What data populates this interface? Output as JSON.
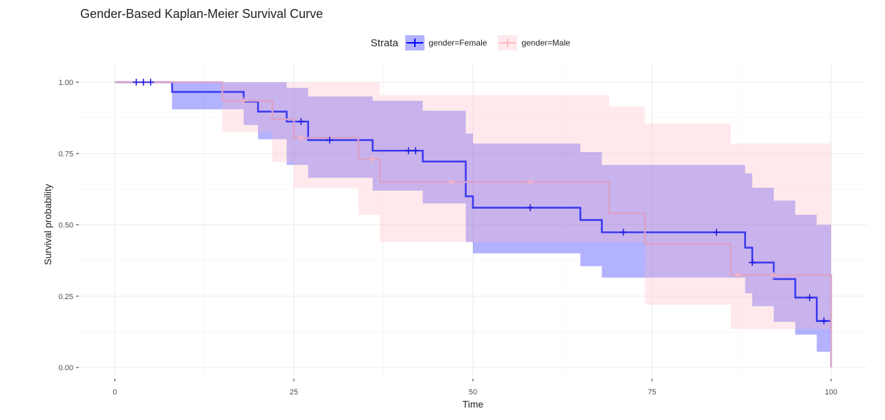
{
  "chart_data": {
    "type": "kaplan-meier",
    "title": "Gender-Based Kaplan-Meier Survival Curve",
    "xlabel": "Time",
    "ylabel": "Survival probability",
    "xlim": [
      0,
      100
    ],
    "ylim": [
      0,
      1
    ],
    "x_ticks": [
      0,
      25,
      50,
      75,
      100
    ],
    "y_ticks": [
      0,
      0.25,
      0.5,
      0.75,
      1
    ],
    "x_tick_labels": [
      "0",
      "25",
      "50",
      "75",
      "100"
    ],
    "y_tick_labels": [
      "0.00",
      "0.25",
      "0.50",
      "0.75",
      "1.00"
    ],
    "grid": true,
    "legend": {
      "title": "Strata",
      "position": "top",
      "entries": [
        "gender=Female",
        "gender=Male"
      ]
    },
    "series": [
      {
        "name": "gender=Female",
        "color": "#0000ff",
        "band_color": "#0000ff",
        "steps": [
          {
            "x": 0,
            "y": 1.0,
            "lo": 1.0,
            "hi": 1.0
          },
          {
            "x": 8,
            "y": 0.966,
            "lo": 0.905,
            "hi": 1.0
          },
          {
            "x": 18,
            "y": 0.932,
            "lo": 0.85,
            "hi": 1.0
          },
          {
            "x": 20,
            "y": 0.897,
            "lo": 0.8,
            "hi": 1.0
          },
          {
            "x": 24,
            "y": 0.862,
            "lo": 0.71,
            "hi": 0.98
          },
          {
            "x": 27,
            "y": 0.797,
            "lo": 0.665,
            "hi": 0.95
          },
          {
            "x": 36,
            "y": 0.76,
            "lo": 0.62,
            "hi": 0.935
          },
          {
            "x": 43,
            "y": 0.722,
            "lo": 0.575,
            "hi": 0.9
          },
          {
            "x": 49,
            "y": 0.6,
            "lo": 0.44,
            "hi": 0.82
          },
          {
            "x": 50,
            "y": 0.56,
            "lo": 0.4,
            "hi": 0.785
          },
          {
            "x": 65,
            "y": 0.517,
            "lo": 0.355,
            "hi": 0.755
          },
          {
            "x": 68,
            "y": 0.474,
            "lo": 0.315,
            "hi": 0.71
          },
          {
            "x": 88,
            "y": 0.42,
            "lo": 0.26,
            "hi": 0.68
          },
          {
            "x": 89,
            "y": 0.368,
            "lo": 0.215,
            "hi": 0.63
          },
          {
            "x": 92,
            "y": 0.31,
            "lo": 0.16,
            "hi": 0.585
          },
          {
            "x": 95,
            "y": 0.245,
            "lo": 0.115,
            "hi": 0.535
          },
          {
            "x": 98,
            "y": 0.163,
            "lo": 0.055,
            "hi": 0.5
          },
          {
            "x": 100,
            "y": 0.163,
            "lo": 0.055,
            "hi": 0.5
          }
        ],
        "censor_times": [
          3,
          4,
          5,
          26,
          30,
          41,
          42,
          58,
          71,
          84,
          89,
          97,
          99
        ]
      },
      {
        "name": "gender=Male",
        "color": "#ffb6c1",
        "line_color": "#d8a2c9",
        "band_color": "#ffb6c1",
        "steps": [
          {
            "x": 0,
            "y": 1.0,
            "lo": 1.0,
            "hi": 1.0
          },
          {
            "x": 15,
            "y": 0.935,
            "lo": 0.825,
            "hi": 1.0
          },
          {
            "x": 22,
            "y": 0.87,
            "lo": 0.72,
            "hi": 1.0
          },
          {
            "x": 25,
            "y": 0.805,
            "lo": 0.63,
            "hi": 1.0
          },
          {
            "x": 34,
            "y": 0.73,
            "lo": 0.535,
            "hi": 1.0
          },
          {
            "x": 37,
            "y": 0.65,
            "lo": 0.44,
            "hi": 0.955
          },
          {
            "x": 69,
            "y": 0.54,
            "lo": 0.44,
            "hi": 0.915
          },
          {
            "x": 74,
            "y": 0.432,
            "lo": 0.22,
            "hi": 0.855
          },
          {
            "x": 86,
            "y": 0.324,
            "lo": 0.135,
            "hi": 0.785
          },
          {
            "x": 100,
            "y": 0.0,
            "lo": 0.0,
            "hi": 0.785
          }
        ],
        "censor_times": [
          18,
          26,
          36,
          47,
          58,
          87,
          92
        ]
      }
    ]
  }
}
